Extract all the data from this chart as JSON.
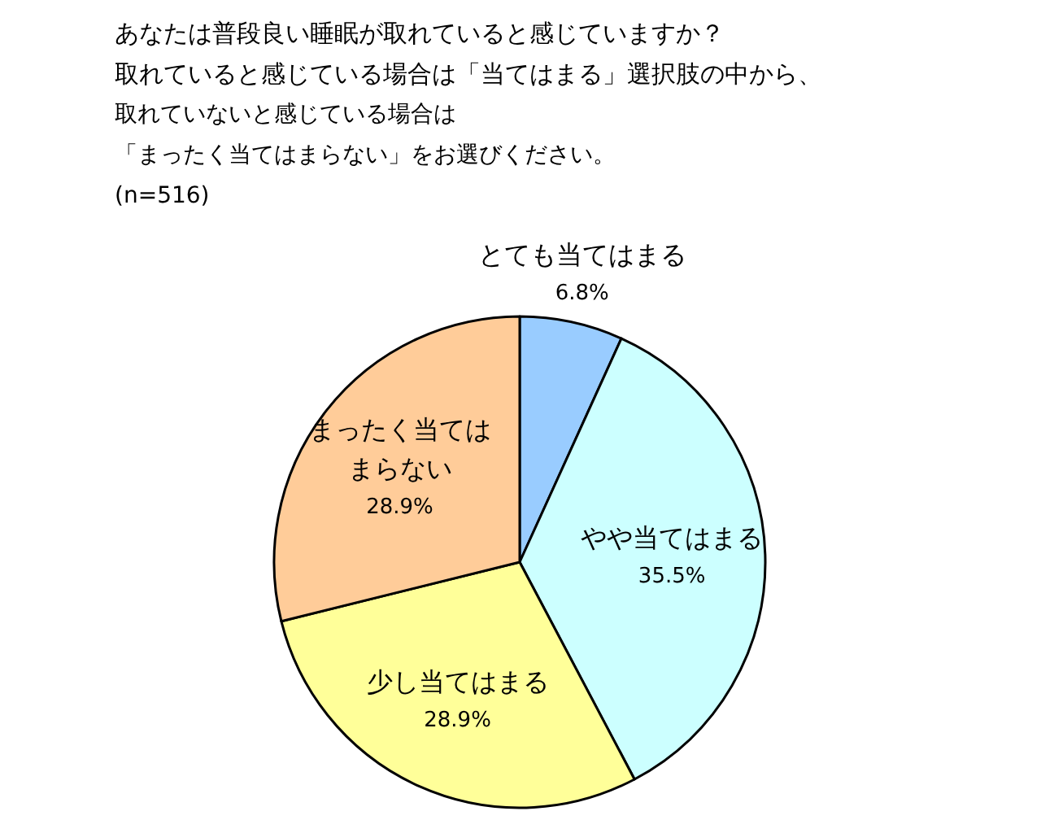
{
  "chart_data": {
    "type": "pie",
    "title": "あなたは普段良い睡眠が取れていると感じていますか？",
    "subtitle": "取れていると感じている場合は「当てはまる」選択肢の中から、",
    "annotations": [
      "取れていないと感じている場合は",
      "「まったく当てはまらない」をお選びください。",
      "(n=516)"
    ],
    "categories": [
      "とても当てはまる",
      "やや当てはまる",
      "少し当てはまる",
      "まったく当てはまらない"
    ],
    "values": [
      6.8,
      35.5,
      28.9,
      28.9
    ],
    "value_labels": [
      "6.8%",
      "35.5%",
      "28.9%",
      "28.9%"
    ],
    "colors": [
      "#99ccff",
      "#ccffff",
      "#ffff99",
      "#ffcc99"
    ]
  }
}
